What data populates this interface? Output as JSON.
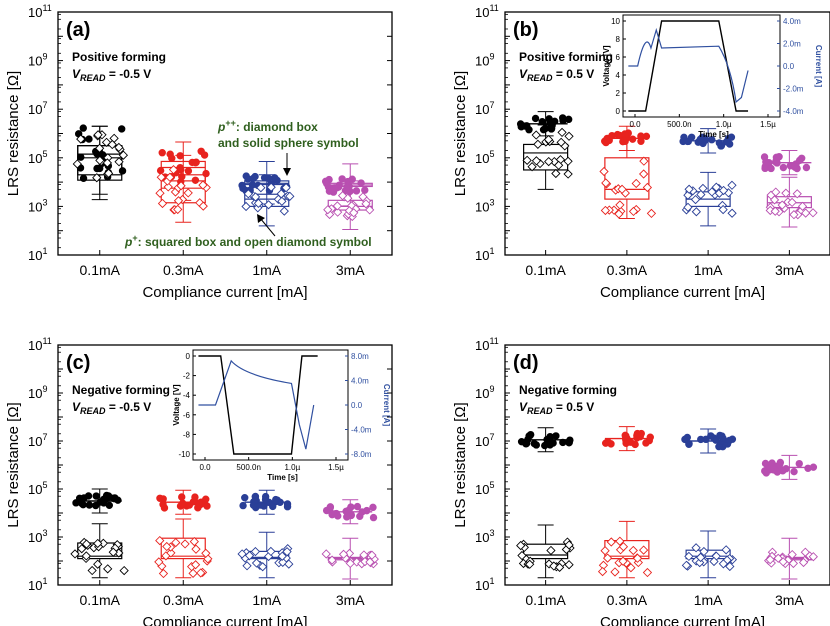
{
  "colors": {
    "black": "#000000",
    "red": "#e8231e",
    "blue": "#2a3f97",
    "magenta": "#b84fb0",
    "annot": "#2f5f1e",
    "inset_blue": "#3050a0"
  },
  "chart_data": [
    {
      "panel": "(a)",
      "type": "box",
      "log_y": true,
      "ylim_exp": [
        1,
        11
      ],
      "ylabel": "LRS resistance [Ω]",
      "xlabel": "Compliance current [mA]",
      "categories": [
        "0.1mA",
        "0.3mA",
        "1mA",
        "3mA"
      ],
      "label_line1": "Positive forming",
      "label_line2_sub": "READ",
      "label_line2_val": " = -0.5 V",
      "annotations": {
        "pp_sup": "++",
        "pp_text": ": diamond box",
        "pp_text2": "and solid sphere symbol",
        "p_sup": "+",
        "p_text": ": squared box and open diamond symbol"
      },
      "series": [
        {
          "state": "p++ (solid)",
          "box_log": [
            [
              4.08,
              5.5
            ],
            [
              4.05,
              4.85
            ],
            [
              3.9,
              4.05
            ],
            [
              3.82,
              3.95
            ]
          ],
          "median_log": [
            5.15,
            4.6,
            3.95,
            3.88
          ]
        },
        {
          "state": "p+ (open)",
          "box_log": [
            [
              4.3,
              5.5
            ],
            [
              3.15,
              4.3
            ],
            [
              3.0,
              3.5
            ],
            [
              2.85,
              3.25
            ]
          ],
          "median_log": [
            5.0,
            3.75,
            3.3,
            3.0
          ]
        }
      ]
    },
    {
      "panel": "(b)",
      "type": "box",
      "log_y": true,
      "ylim_exp": [
        1,
        11
      ],
      "ylabel": "LRS resistance [Ω]",
      "xlabel": "Compliance current [mA]",
      "categories": [
        "0.1mA",
        "0.3mA",
        "1mA",
        "3mA"
      ],
      "label_line1": "Positive forming",
      "label_line2_sub": "READ",
      "label_line2_val": " = 0.5 V",
      "series": [
        {
          "state": "p++ (solid)",
          "median_log": [
            6.4,
            5.8,
            5.7,
            4.8
          ]
        },
        {
          "state": "p+ (open)",
          "box_log": [
            [
              4.5,
              5.55
            ],
            [
              3.3,
              5.0
            ],
            [
              3.0,
              3.6
            ],
            [
              2.95,
              3.4
            ]
          ],
          "median_log": [
            5.2,
            3.7,
            3.3,
            3.15
          ]
        }
      ],
      "inset": {
        "xlabel": "Time [s]",
        "ylabel_left": "Voltage [V]",
        "ylabel_right": "Current [A]",
        "xticks": [
          "0.0",
          "500.0n",
          "1.0µ",
          "1.5µ"
        ],
        "yticks_left": [
          "0",
          "2",
          "4",
          "6",
          "8",
          "10"
        ],
        "yticks_right": [
          "4.0m",
          "2.0m",
          "0.0",
          "-2.0m",
          "-4.0m"
        ]
      }
    },
    {
      "panel": "(c)",
      "type": "box",
      "log_y": true,
      "ylim_exp": [
        1,
        11
      ],
      "ylabel": "LRS resistance [Ω]",
      "xlabel": "Compliance current [mA]",
      "categories": [
        "0.1mA",
        "0.3mA",
        "1mA",
        "3mA"
      ],
      "label_line1": "Negative forming",
      "label_line2_sub": "READ",
      "label_line2_val": " = -0.5 V",
      "series": [
        {
          "state": "p++ (solid)",
          "median_log": [
            4.5,
            4.45,
            4.45,
            4.05
          ]
        },
        {
          "state": "p+ (open)",
          "box_log": [
            [
              2.1,
              2.75
            ],
            [
              2.1,
              2.95
            ],
            [
              2.1,
              2.4
            ],
            [
              2.05,
              2.15
            ]
          ],
          "median_log": [
            2.2,
            2.2,
            2.15,
            2.1
          ]
        }
      ],
      "inset": {
        "xlabel": "Time [s]",
        "ylabel_left": "Voltage [V]",
        "ylabel_right": "Current [A]",
        "xticks": [
          "0.0",
          "500.0n",
          "1.0µ",
          "1.5µ"
        ],
        "yticks_left": [
          "0",
          "-2",
          "-4",
          "-6",
          "-8",
          "-10"
        ],
        "yticks_right": [
          "8.0m",
          "4.0m",
          "0.0",
          "-4.0m",
          "-8.0m"
        ]
      }
    },
    {
      "panel": "(d)",
      "type": "box",
      "log_y": true,
      "ylim_exp": [
        1,
        11
      ],
      "ylabel": "LRS resistance [Ω]",
      "xlabel": "Compliance current [mA]",
      "categories": [
        "0.1mA",
        "0.3mA",
        "1mA",
        "3mA"
      ],
      "label_line1": "Negative forming",
      "label_line2_sub": "READ",
      "label_line2_val": " = 0.5 V",
      "series": [
        {
          "state": "p++ (solid)",
          "median_log": [
            7.05,
            7.1,
            7.0,
            5.9
          ]
        },
        {
          "state": "p+ (open)",
          "box_log": [
            [
              2.1,
              2.7
            ],
            [
              2.1,
              2.85
            ],
            [
              2.1,
              2.45
            ],
            [
              2.05,
              2.15
            ]
          ],
          "median_log": [
            2.25,
            2.2,
            2.2,
            2.1
          ]
        }
      ]
    }
  ]
}
